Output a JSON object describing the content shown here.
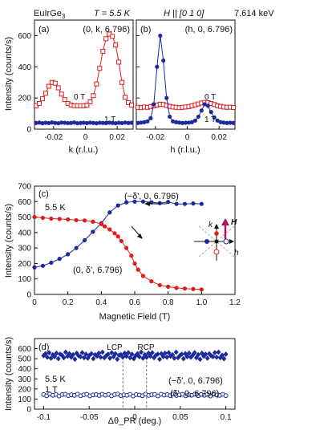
{
  "header": {
    "material": "EuIrGe",
    "material_sub": "3",
    "temperature": "T = 5.5 K",
    "field_dir": "H || [0 1 0]",
    "energy": "7.614 keV"
  },
  "colors": {
    "red": "#e01b1b",
    "blue": "#1c2a9c",
    "axis": "#111111"
  },
  "chart_data": [
    {
      "id": "panel-a",
      "type": "scatter",
      "panel_label": "(a)",
      "title": "(0, k, 6.796)",
      "xlabel": "k (r.l.u.)",
      "ylabel": "Intensity (counts/s)",
      "xlim": [
        -0.032,
        0.03
      ],
      "ylim": [
        0,
        700
      ],
      "xticks": [
        -0.02,
        0,
        0.02
      ],
      "xtick_labels": [
        "-0.02",
        "0",
        "0.02"
      ],
      "yticks": [
        0,
        200,
        400,
        600
      ],
      "ytick_labels": [
        "0",
        "200",
        "400",
        "600"
      ],
      "annotations": [
        "0 T",
        "1 T"
      ],
      "series": [
        {
          "id": "a-0T",
          "marker": "open-square",
          "color": "#e01b1b",
          "x": [
            -0.031,
            -0.029,
            -0.027,
            -0.025,
            -0.023,
            -0.021,
            -0.019,
            -0.017,
            -0.015,
            -0.013,
            -0.011,
            -0.009,
            -0.007,
            -0.005,
            -0.003,
            -0.001,
            0.001,
            0.003,
            0.005,
            0.007,
            0.009,
            0.011,
            0.013,
            0.015,
            0.017,
            0.019,
            0.021,
            0.023,
            0.025,
            0.027,
            0.029
          ],
          "y": [
            150,
            165,
            195,
            230,
            275,
            300,
            295,
            265,
            225,
            190,
            165,
            155,
            150,
            150,
            150,
            150,
            155,
            175,
            215,
            290,
            390,
            500,
            580,
            610,
            595,
            540,
            430,
            300,
            205,
            170,
            155
          ]
        },
        {
          "id": "a-1T",
          "marker": "filled-circle",
          "color": "#1c2a9c",
          "x": [
            -0.031,
            -0.029,
            -0.027,
            -0.025,
            -0.023,
            -0.021,
            -0.019,
            -0.017,
            -0.015,
            -0.013,
            -0.011,
            -0.009,
            -0.007,
            -0.005,
            -0.003,
            -0.001,
            0.001,
            0.003,
            0.005,
            0.007,
            0.009,
            0.011,
            0.013,
            0.015,
            0.017,
            0.019,
            0.021,
            0.023,
            0.025,
            0.027,
            0.029
          ],
          "y": [
            40,
            42,
            38,
            41,
            39,
            43,
            40,
            38,
            42,
            41,
            39,
            40,
            43,
            38,
            40,
            41,
            39,
            42,
            40,
            38,
            41,
            40,
            39,
            42,
            40,
            38,
            41,
            39,
            42,
            40,
            41
          ]
        }
      ]
    },
    {
      "id": "panel-b",
      "type": "scatter",
      "panel_label": "(b)",
      "title": "(h, 0, 6.796)",
      "xlabel": "h (r.l.u.)",
      "ylabel": "",
      "xlim": [
        -0.032,
        0.03
      ],
      "ylim": [
        0,
        700
      ],
      "xticks": [
        -0.02,
        0,
        0.02
      ],
      "xtick_labels": [
        "-0.02",
        "0",
        "0.02"
      ],
      "yticks": [
        0,
        200,
        400,
        600
      ],
      "ytick_labels": [],
      "annotations": [
        "0 T",
        "1 T"
      ],
      "series": [
        {
          "id": "b-0T",
          "marker": "open-square",
          "color": "#e01b1b",
          "x": [
            -0.031,
            -0.029,
            -0.027,
            -0.025,
            -0.023,
            -0.021,
            -0.019,
            -0.017,
            -0.015,
            -0.013,
            -0.011,
            -0.009,
            -0.007,
            -0.005,
            -0.003,
            -0.001,
            0.001,
            0.003,
            0.005,
            0.007,
            0.009,
            0.011,
            0.013,
            0.015,
            0.017,
            0.019,
            0.021,
            0.023,
            0.025,
            0.027,
            0.029
          ],
          "y": [
            140,
            138,
            142,
            140,
            145,
            150,
            155,
            160,
            158,
            152,
            146,
            142,
            140,
            138,
            140,
            142,
            145,
            150,
            156,
            162,
            168,
            172,
            170,
            165,
            158,
            150,
            146,
            142,
            140,
            141,
            139
          ]
        },
        {
          "id": "b-1T",
          "marker": "filled-circle",
          "color": "#1c2a9c",
          "x": [
            -0.031,
            -0.029,
            -0.027,
            -0.025,
            -0.023,
            -0.021,
            -0.019,
            -0.017,
            -0.015,
            -0.013,
            -0.011,
            -0.009,
            -0.007,
            -0.005,
            -0.003,
            -0.001,
            0.001,
            0.003,
            0.005,
            0.007,
            0.009,
            0.011,
            0.013,
            0.015,
            0.017,
            0.019,
            0.021,
            0.023,
            0.025,
            0.027,
            0.029
          ],
          "y": [
            40,
            42,
            45,
            50,
            70,
            160,
            400,
            600,
            440,
            200,
            80,
            50,
            45,
            42,
            40,
            41,
            42,
            45,
            55,
            80,
            120,
            160,
            150,
            110,
            75,
            55,
            45,
            42,
            40,
            41,
            40
          ]
        }
      ]
    },
    {
      "id": "panel-c",
      "type": "line",
      "panel_label": "(c)",
      "title": "",
      "xlabel": "Magnetic Field (T)",
      "ylabel": "Intensity (counts/s)",
      "xlim": [
        0,
        1.2
      ],
      "ylim": [
        0,
        700
      ],
      "xticks": [
        0,
        0.2,
        0.4,
        0.6,
        0.8,
        1.0,
        1.2
      ],
      "xtick_labels": [
        "0",
        "0.2",
        "0.4",
        "0.6",
        "0.8",
        "1.0",
        "1.2"
      ],
      "yticks": [
        0,
        100,
        200,
        300,
        400,
        500,
        600,
        700
      ],
      "ytick_labels": [
        "0",
        "100",
        "200",
        "300",
        "400",
        "500",
        "600",
        "700"
      ],
      "annotations": [
        "5.5 K",
        "(−δ', 0, 6.796)",
        "(0, δ', 6.796)"
      ],
      "inset_labels": [
        "k",
        "H",
        "h"
      ],
      "series": [
        {
          "id": "c-minus-delta",
          "marker": "filled-circle",
          "color": "#1c2a9c",
          "x": [
            0,
            0.05,
            0.1,
            0.15,
            0.2,
            0.25,
            0.3,
            0.35,
            0.4,
            0.45,
            0.5,
            0.55,
            0.6,
            0.65,
            0.7,
            0.75,
            0.8,
            0.85,
            0.9,
            0.95,
            1.0
          ],
          "y": [
            175,
            185,
            205,
            230,
            260,
            300,
            350,
            405,
            460,
            530,
            575,
            595,
            600,
            600,
            595,
            590,
            598,
            585,
            585,
            588,
            585
          ]
        },
        {
          "id": "c-delta",
          "marker": "filled-circle",
          "color": "#e01b1b",
          "x": [
            0,
            0.05,
            0.1,
            0.15,
            0.2,
            0.25,
            0.3,
            0.35,
            0.4,
            0.42,
            0.45,
            0.48,
            0.5,
            0.52,
            0.55,
            0.58,
            0.6,
            0.62,
            0.65,
            0.7,
            0.75,
            0.8,
            0.85,
            0.9,
            0.95,
            1.0
          ],
          "y": [
            500,
            495,
            490,
            488,
            485,
            480,
            478,
            470,
            455,
            440,
            420,
            395,
            375,
            345,
            300,
            250,
            200,
            160,
            120,
            85,
            60,
            50,
            42,
            38,
            35,
            32
          ]
        }
      ]
    },
    {
      "id": "panel-d",
      "type": "scatter",
      "panel_label": "(d)",
      "title": "",
      "xlabel": "Δθ_PR (deg.)",
      "ylabel": "Intensity (counts/s)",
      "xlim": [
        -0.11,
        0.11
      ],
      "ylim": [
        0,
        700
      ],
      "xticks": [
        -0.1,
        -0.05,
        0,
        0.05,
        0.1
      ],
      "xtick_labels": [
        "-0.1",
        "-0.05",
        "0",
        "0.05",
        "0.1"
      ],
      "yticks": [
        0,
        100,
        200,
        300,
        400,
        500,
        600
      ],
      "ytick_labels": [
        "0",
        "100",
        "200",
        "300",
        "400",
        "500",
        "600"
      ],
      "annotations": [
        "LCP",
        "RCP",
        "5.5 K",
        "1 T",
        "(−δ', 0, 6.796)",
        "(δ', 0, 6.796)"
      ],
      "vlines": [
        -0.013,
        0.013
      ],
      "series": [
        {
          "id": "d-minus-delta",
          "marker": "filled-diamond",
          "color": "#1c2a9c",
          "x_range": [
            -0.1,
            0.1
          ],
          "n_points": 100,
          "mean": 530,
          "jitter": [
            0,
            20,
            -15,
            30,
            -25,
            10,
            -10,
            25,
            -30,
            15,
            5,
            -20,
            35,
            -5,
            20,
            -15,
            10,
            -35,
            25,
            0,
            -10,
            30,
            -20,
            15,
            -25,
            5,
            20,
            -30,
            10,
            -5,
            25,
            -15,
            35,
            -20,
            0,
            15,
            -25,
            30,
            -10,
            20,
            -35,
            5,
            10,
            -15,
            25,
            -5,
            30,
            -20,
            15,
            -30,
            0,
            20,
            -10,
            35,
            -25,
            10,
            -15,
            25,
            -5,
            30,
            -20,
            5,
            15,
            -35,
            20,
            -10,
            25,
            -15,
            30,
            -5,
            10,
            -25,
            35,
            -20,
            0,
            15,
            -30,
            20,
            -10,
            25,
            -15,
            5,
            30,
            -20,
            10,
            -35,
            25,
            -5,
            15,
            -25,
            20,
            0,
            -10,
            30,
            -15,
            35,
            -20,
            5,
            -30,
            15
          ]
        },
        {
          "id": "d-delta",
          "marker": "open-circle",
          "color": "#1c2a9c",
          "x_range": [
            -0.1,
            0.1
          ],
          "n_points": 60,
          "mean": 140,
          "jitter": [
            5,
            -8,
            10,
            -3,
            6,
            -10,
            4,
            8,
            -6,
            2,
            -4,
            9,
            -7,
            3,
            7,
            -9,
            1,
            5,
            -5,
            8,
            -2,
            6,
            -8,
            4,
            10,
            -6,
            2,
            -3,
            7,
            -10,
            5,
            0,
            -7,
            9,
            -4,
            3,
            6,
            -9,
            8,
            -1,
            4,
            -6,
            10,
            -5,
            2,
            7,
            -8,
            3,
            -2,
            9,
            -7,
            6,
            -3,
            5,
            -10,
            8,
            1,
            -4,
            7,
            -6
          ]
        }
      ]
    }
  ]
}
